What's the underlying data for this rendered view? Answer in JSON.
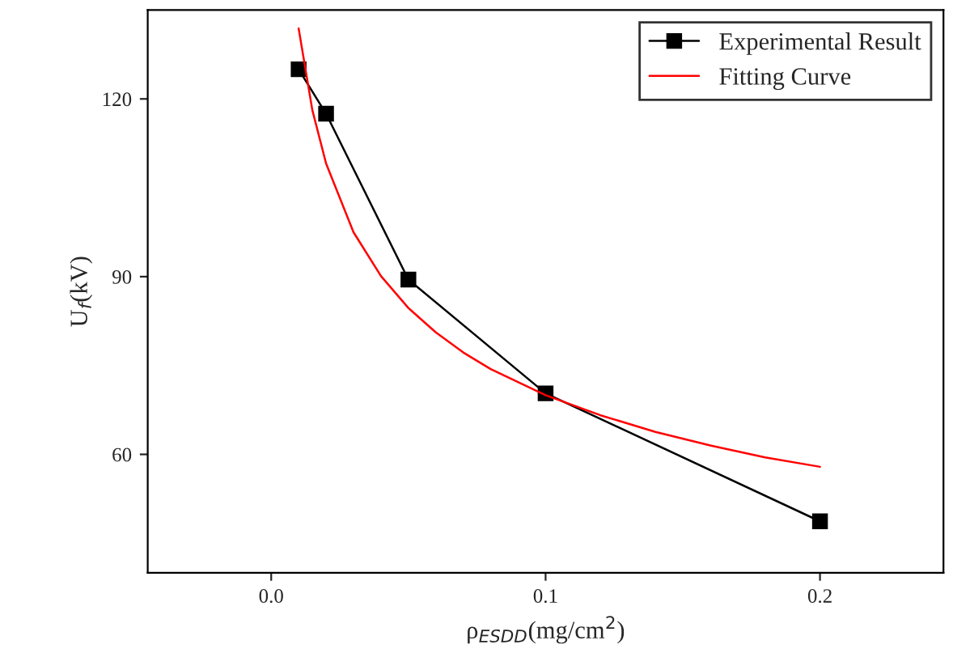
{
  "chart_data": {
    "type": "line",
    "xlabel": "ρ$_{ESDD}$(mg/cm$^{2}$)",
    "ylabel": "U$_{f}$(kV)",
    "xlim": [
      -0.045,
      0.245
    ],
    "ylim": [
      40,
      135
    ],
    "xticks": [
      {
        "value": 0,
        "label": "0.0"
      },
      0.1,
      0.2
    ],
    "yticks": [
      60,
      90,
      120
    ],
    "grid": false,
    "legend": "top right",
    "series": [
      {
        "name": "Experimental Result",
        "color": "#000000",
        "marker": "square",
        "x": [
          0.01,
          0.02,
          0.05,
          0.1,
          0.2
        ],
        "values": [
          125,
          117.5,
          89.5,
          70.3,
          48.7
        ]
      },
      {
        "name": "Fitting Curve",
        "color": "#ff0000",
        "marker": "none",
        "x": [
          0.01,
          0.015,
          0.02,
          0.03,
          0.04,
          0.05,
          0.06,
          0.07,
          0.08,
          0.1,
          0.12,
          0.14,
          0.16,
          0.18,
          0.2
        ],
        "values": [
          131.9,
          118.1,
          109.1,
          97.5,
          90.1,
          84.7,
          80.6,
          77.2,
          74.4,
          70,
          66.6,
          63.8,
          61.5,
          59.5,
          57.9
        ]
      }
    ]
  }
}
